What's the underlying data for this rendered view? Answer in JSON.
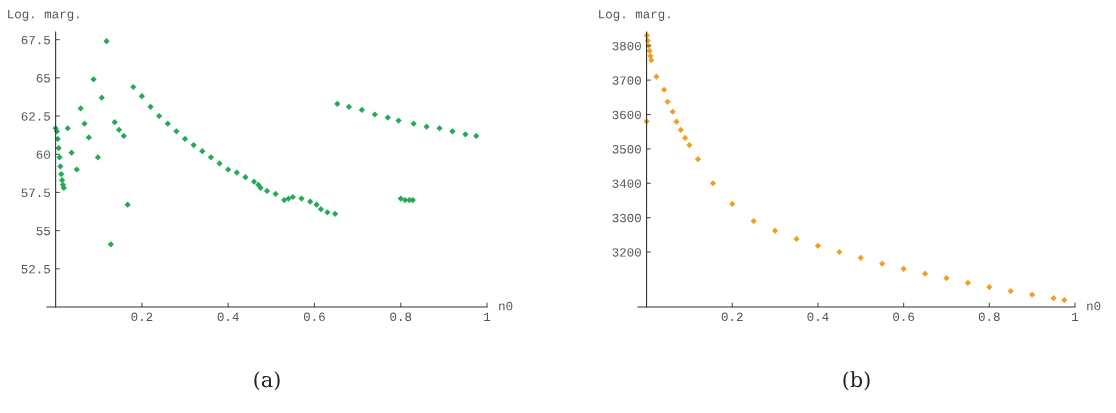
{
  "chart_data": [
    {
      "type": "scatter",
      "xlabel": "n0",
      "ylabel": "Log. marg.",
      "annotations": [
        "(a)"
      ],
      "marker": "diamond",
      "xlim": [
        -0.02,
        1.0
      ],
      "ylim": [
        50,
        68
      ],
      "xticks": [
        0.2,
        0.4,
        0.6,
        0.8,
        1
      ],
      "yticks": [
        52.5,
        55,
        57.5,
        60,
        62.5,
        65,
        67.5
      ],
      "series": [
        {
          "color": "#22aa55",
          "x": [
            0.0,
            0.003,
            0.005,
            0.007,
            0.009,
            0.011,
            0.013,
            0.015,
            0.017,
            0.019,
            0.028,
            0.037,
            0.049,
            0.058,
            0.067,
            0.077,
            0.088,
            0.098,
            0.107,
            0.118,
            0.128,
            0.137,
            0.147,
            0.158,
            0.167,
            0.18,
            0.2,
            0.22,
            0.24,
            0.26,
            0.28,
            0.3,
            0.32,
            0.34,
            0.36,
            0.38,
            0.4,
            0.42,
            0.44,
            0.46,
            0.47,
            0.475,
            0.49,
            0.51,
            0.53,
            0.54,
            0.55,
            0.57,
            0.59,
            0.605,
            0.615,
            0.63,
            0.648,
            0.653,
            0.68,
            0.71,
            0.74,
            0.77,
            0.795,
            0.8,
            0.81,
            0.82,
            0.828,
            0.83,
            0.86,
            0.89,
            0.92,
            0.95,
            0.975
          ],
          "values": [
            61.7,
            61.5,
            61.0,
            60.4,
            59.8,
            59.2,
            58.7,
            58.3,
            58.0,
            57.8,
            61.7,
            60.1,
            59.0,
            63.0,
            62.0,
            61.1,
            64.9,
            59.8,
            63.7,
            67.4,
            54.1,
            62.1,
            61.6,
            61.2,
            56.7,
            64.4,
            63.8,
            63.1,
            62.5,
            62.0,
            61.5,
            61.0,
            60.6,
            60.2,
            59.8,
            59.4,
            59.0,
            58.8,
            58.5,
            58.2,
            58.0,
            57.8,
            57.6,
            57.4,
            57.0,
            57.1,
            57.2,
            57.1,
            56.9,
            56.7,
            56.4,
            56.2,
            56.1,
            63.3,
            63.1,
            62.9,
            62.6,
            62.4,
            62.2,
            57.1,
            57.0,
            57.0,
            57.0,
            62.0,
            61.8,
            61.7,
            61.5,
            61.3,
            61.2
          ]
        }
      ]
    },
    {
      "type": "scatter",
      "xlabel": "n0",
      "ylabel": "Log. marg.",
      "annotations": [
        "(b)"
      ],
      "marker": "diamond",
      "xlim": [
        -0.02,
        1.0
      ],
      "ylim": [
        3040,
        3840
      ],
      "xticks": [
        0.2,
        0.4,
        0.6,
        0.8,
        1
      ],
      "yticks": [
        3200,
        3300,
        3400,
        3500,
        3600,
        3700,
        3800
      ],
      "series": [
        {
          "color": "#f0a020",
          "x": [
            0.0,
            0.001,
            0.003,
            0.005,
            0.007,
            0.009,
            0.011,
            0.023,
            0.041,
            0.049,
            0.061,
            0.07,
            0.08,
            0.09,
            0.1,
            0.12,
            0.155,
            0.2,
            0.25,
            0.3,
            0.35,
            0.4,
            0.45,
            0.5,
            0.55,
            0.6,
            0.65,
            0.7,
            0.75,
            0.8,
            0.85,
            0.9,
            0.95,
            0.975
          ],
          "values": [
            3580,
            3830,
            3815,
            3800,
            3785,
            3770,
            3758,
            3710,
            3672,
            3637,
            3608,
            3579,
            3555,
            3532,
            3511,
            3470,
            3400,
            3340,
            3290,
            3262,
            3238,
            3218,
            3200,
            3183,
            3166,
            3151,
            3137,
            3124,
            3110,
            3098,
            3086,
            3076,
            3066,
            3060
          ]
        }
      ]
    }
  ]
}
